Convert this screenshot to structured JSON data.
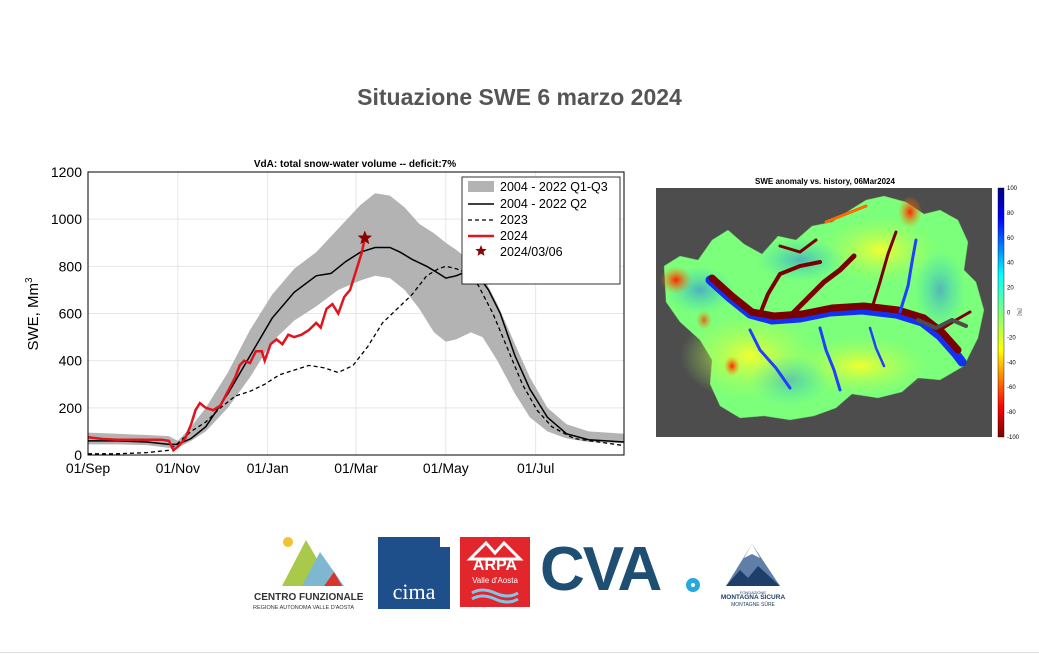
{
  "page": {
    "title": "Situazione SWE 6 marzo 2024"
  },
  "chart_data": [
    {
      "type": "line",
      "title": "VdA: total snow-water volume -- deficit:7%",
      "xlabel": "",
      "ylabel": "SWE, Mm",
      "ylabel_sup": "3",
      "ylim": [
        0,
        1200
      ],
      "yticks": [
        0,
        200,
        400,
        600,
        800,
        1000,
        1200
      ],
      "xlim": [
        0,
        364
      ],
      "xticks": [
        {
          "day": 0,
          "label": "01/Sep"
        },
        {
          "day": 61,
          "label": "01/Nov"
        },
        {
          "day": 122,
          "label": "01/Jan"
        },
        {
          "day": 182,
          "label": "01/Mar"
        },
        {
          "day": 243,
          "label": "01/May"
        },
        {
          "day": 304,
          "label": "01/Jul"
        }
      ],
      "grid": true,
      "legend_position": "top-right",
      "legend": [
        {
          "label": "2004 - 2022 Q1-Q3",
          "style": "band"
        },
        {
          "label": "2004 - 2022 Q2",
          "style": "solid-black"
        },
        {
          "label": "2023",
          "style": "dashed-black"
        },
        {
          "label": "2024",
          "style": "solid-red"
        },
        {
          "label": "2024/03/06",
          "style": "star-marker"
        }
      ],
      "colors": {
        "band": "#b3b3b3",
        "q2": "#000000",
        "y2023": "#000000",
        "y2024": "#e0141e",
        "star": "#8b0000"
      },
      "band_q1": [
        [
          0,
          45
        ],
        [
          20,
          45
        ],
        [
          40,
          42
        ],
        [
          55,
          30
        ],
        [
          61,
          30
        ],
        [
          70,
          60
        ],
        [
          80,
          100
        ],
        [
          95,
          200
        ],
        [
          110,
          330
        ],
        [
          125,
          480
        ],
        [
          140,
          570
        ],
        [
          155,
          630
        ],
        [
          170,
          700
        ],
        [
          185,
          740
        ],
        [
          195,
          760
        ],
        [
          205,
          750
        ],
        [
          215,
          700
        ],
        [
          225,
          620
        ],
        [
          235,
          520
        ],
        [
          243,
          480
        ],
        [
          250,
          490
        ],
        [
          260,
          520
        ],
        [
          268,
          500
        ],
        [
          278,
          400
        ],
        [
          290,
          260
        ],
        [
          300,
          160
        ],
        [
          312,
          100
        ],
        [
          325,
          70
        ],
        [
          340,
          55
        ],
        [
          364,
          50
        ]
      ],
      "band_q3": [
        [
          0,
          95
        ],
        [
          20,
          90
        ],
        [
          40,
          85
        ],
        [
          55,
          80
        ],
        [
          61,
          60
        ],
        [
          70,
          120
        ],
        [
          80,
          200
        ],
        [
          95,
          350
        ],
        [
          110,
          530
        ],
        [
          125,
          680
        ],
        [
          140,
          790
        ],
        [
          155,
          860
        ],
        [
          170,
          960
        ],
        [
          185,
          1060
        ],
        [
          195,
          1110
        ],
        [
          205,
          1100
        ],
        [
          215,
          1050
        ],
        [
          225,
          980
        ],
        [
          235,
          940
        ],
        [
          243,
          900
        ],
        [
          250,
          870
        ],
        [
          260,
          820
        ],
        [
          268,
          760
        ],
        [
          278,
          640
        ],
        [
          290,
          470
        ],
        [
          300,
          330
        ],
        [
          312,
          200
        ],
        [
          325,
          130
        ],
        [
          340,
          100
        ],
        [
          364,
          90
        ]
      ],
      "series": [
        {
          "name": "2004 - 2022 Q2",
          "points": [
            [
              0,
              60
            ],
            [
              20,
              60
            ],
            [
              40,
              55
            ],
            [
              55,
              45
            ],
            [
              61,
              45
            ],
            [
              70,
              70
            ],
            [
              80,
              120
            ],
            [
              95,
              260
            ],
            [
              110,
              420
            ],
            [
              125,
              580
            ],
            [
              140,
              690
            ],
            [
              155,
              760
            ],
            [
              165,
              770
            ],
            [
              175,
              820
            ],
            [
              185,
              860
            ],
            [
              195,
              880
            ],
            [
              205,
              880
            ],
            [
              212,
              860
            ],
            [
              220,
              830
            ],
            [
              230,
              800
            ],
            [
              238,
              770
            ],
            [
              243,
              750
            ],
            [
              250,
              760
            ],
            [
              258,
              780
            ],
            [
              265,
              760
            ],
            [
              272,
              700
            ],
            [
              280,
              600
            ],
            [
              290,
              420
            ],
            [
              300,
              280
            ],
            [
              312,
              160
            ],
            [
              325,
              90
            ],
            [
              340,
              65
            ],
            [
              364,
              55
            ]
          ]
        },
        {
          "name": "2023",
          "points": [
            [
              0,
              5
            ],
            [
              20,
              5
            ],
            [
              40,
              10
            ],
            [
              55,
              20
            ],
            [
              61,
              50
            ],
            [
              70,
              100
            ],
            [
              80,
              140
            ],
            [
              90,
              200
            ],
            [
              100,
              250
            ],
            [
              110,
              270
            ],
            [
              120,
              300
            ],
            [
              130,
              340
            ],
            [
              140,
              360
            ],
            [
              150,
              380
            ],
            [
              160,
              370
            ],
            [
              170,
              350
            ],
            [
              180,
              380
            ],
            [
              190,
              460
            ],
            [
              200,
              560
            ],
            [
              210,
              620
            ],
            [
              220,
              680
            ],
            [
              230,
              760
            ],
            [
              238,
              790
            ],
            [
              243,
              800
            ],
            [
              250,
              790
            ],
            [
              258,
              770
            ],
            [
              265,
              720
            ],
            [
              275,
              600
            ],
            [
              285,
              450
            ],
            [
              295,
              300
            ],
            [
              305,
              190
            ],
            [
              315,
              120
            ],
            [
              330,
              70
            ],
            [
              364,
              40
            ]
          ]
        },
        {
          "name": "2024",
          "points": [
            [
              0,
              75
            ],
            [
              10,
              68
            ],
            [
              20,
              65
            ],
            [
              30,
              65
            ],
            [
              40,
              65
            ],
            [
              50,
              65
            ],
            [
              55,
              60
            ],
            [
              58,
              20
            ],
            [
              61,
              35
            ],
            [
              66,
              70
            ],
            [
              70,
              130
            ],
            [
              73,
              190
            ],
            [
              76,
              220
            ],
            [
              80,
              200
            ],
            [
              85,
              190
            ],
            [
              90,
              210
            ],
            [
              95,
              270
            ],
            [
              100,
              330
            ],
            [
              103,
              380
            ],
            [
              106,
              400
            ],
            [
              110,
              390
            ],
            [
              114,
              440
            ],
            [
              118,
              440
            ],
            [
              120,
              400
            ],
            [
              124,
              470
            ],
            [
              128,
              490
            ],
            [
              132,
              470
            ],
            [
              136,
              510
            ],
            [
              140,
              500
            ],
            [
              145,
              510
            ],
            [
              150,
              530
            ],
            [
              155,
              560
            ],
            [
              158,
              540
            ],
            [
              162,
              620
            ],
            [
              166,
              640
            ],
            [
              170,
              600
            ],
            [
              174,
              670
            ],
            [
              178,
              700
            ],
            [
              182,
              780
            ],
            [
              186,
              860
            ],
            [
              188,
              920
            ]
          ]
        }
      ],
      "marker": {
        "label": "2024/03/06",
        "day": 188,
        "value": 920
      }
    },
    {
      "type": "heatmap",
      "title": "SWE anomaly vs. history, 06Mar2024",
      "colorbar_ticks": [
        100,
        80,
        60,
        40,
        20,
        0,
        -20,
        -40,
        -60,
        -80,
        -100
      ],
      "colorbar_unit": "[%]",
      "colormap": "jet-reversed",
      "background": "#4d4d4d"
    }
  ],
  "logos": {
    "cf_name": "CENTRO FUNZIONALE",
    "cf_sub": "REGIONE AUTONOMA VALLE D'AOSTA",
    "cima": "cima",
    "arpa": "ARPA",
    "arpa_sub": "Valle d'Aosta",
    "cva": "CVA",
    "mont_top": "FONDAZIONE",
    "mont_name": "MONTAGNA SICURA",
    "mont_sub": "MONTAGNE SÛRE"
  }
}
